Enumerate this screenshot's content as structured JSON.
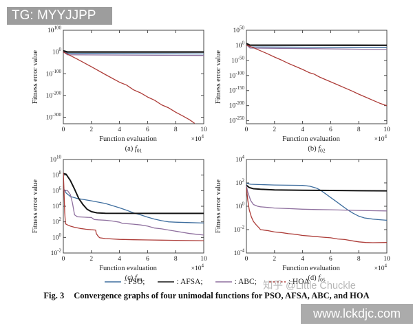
{
  "watermarks": {
    "top_left": "TG: MYYJJPP",
    "zhihu": "知乎 @Little Chuckle",
    "bottom_right": "www.lckdjc.com"
  },
  "figure": {
    "caption_prefix": "Fig. 3",
    "caption_text": "Convergence graphs of four unimodal functions for PSO, AFSA, ABC, and HOA",
    "legend": {
      "items": [
        {
          "name": "PSO",
          "label_text": ": PSO;",
          "color": "#3d6d9e",
          "dash": null
        },
        {
          "name": "AFSA",
          "label_text": ": AFSA;",
          "color": "#141414",
          "dash": null
        },
        {
          "name": "ABC",
          "label_text": ": ABC;",
          "color": "#8e6f9e",
          "dash": null
        },
        {
          "name": "HOA",
          "label_text": ": HOA",
          "color": "#ad3c38",
          "dash": "3,2.5"
        }
      ]
    }
  },
  "colors": {
    "pso_blue": "#3d6d9e",
    "afsa_black": "#141414",
    "abc_purple": "#8e6f9e",
    "hoa_red": "#ad3c38",
    "axis": "#444444"
  },
  "chart_data": [
    {
      "id": "a",
      "type": "line",
      "caption_index": "(a)",
      "caption_fsub": "01",
      "xlabel": "Function evaluation",
      "x_multiplier_base": "×10",
      "x_multiplier_exp": "4",
      "ylabel": "Fitness error value",
      "y_scale": "log10-exponent",
      "xlim": [
        0,
        10
      ],
      "x_ticks": [
        0,
        2,
        4,
        6,
        8,
        10
      ],
      "ylim_exp": [
        100,
        -330
      ],
      "y_ticks_exp": [
        100,
        0,
        -100,
        -200,
        -300
      ],
      "grid": false,
      "series": [
        {
          "name": "PSO",
          "color": "#3d6d9e",
          "width": 1.3,
          "dash": null,
          "points": [
            [
              0,
              3
            ],
            [
              0.3,
              -6
            ],
            [
              10,
              -9
            ]
          ]
        },
        {
          "name": "AFSA",
          "color": "#141414",
          "width": 2.2,
          "dash": null,
          "points": [
            [
              0,
              5
            ],
            [
              0.3,
              0
            ],
            [
              10,
              0
            ]
          ]
        },
        {
          "name": "ABC",
          "color": "#8e6f9e",
          "width": 1.3,
          "dash": null,
          "points": [
            [
              0,
              1
            ],
            [
              0.3,
              -13
            ],
            [
              10,
              -16
            ]
          ]
        },
        {
          "name": "HOA",
          "color": "#ad3c38",
          "width": 1.3,
          "dash": null,
          "points": [
            [
              0,
              0
            ],
            [
              1,
              -33
            ],
            [
              2,
              -68
            ],
            [
              3,
              -104
            ],
            [
              4,
              -139
            ],
            [
              4.5,
              -152
            ],
            [
              5,
              -174
            ],
            [
              5.5,
              -188
            ],
            [
              6,
              -207
            ],
            [
              6.5,
              -222
            ],
            [
              7,
              -243
            ],
            [
              7.5,
              -257
            ],
            [
              8,
              -277
            ],
            [
              8.5,
              -294
            ],
            [
              9,
              -312
            ],
            [
              9.35,
              -328
            ]
          ]
        }
      ]
    },
    {
      "id": "b",
      "type": "line",
      "caption_index": "(b)",
      "caption_fsub": "02",
      "xlabel": "Function evaluation",
      "x_multiplier_base": "×10",
      "x_multiplier_exp": "4",
      "ylabel": "Fitness error value",
      "y_scale": "log10-exponent",
      "xlim": [
        0,
        10
      ],
      "x_ticks": [
        0,
        2,
        4,
        6,
        8,
        10
      ],
      "ylim_exp": [
        50,
        -260
      ],
      "y_ticks_exp": [
        50,
        0,
        -50,
        -100,
        -150,
        -200,
        -250
      ],
      "grid": false,
      "series": [
        {
          "name": "PSO",
          "color": "#3d6d9e",
          "width": 1.3,
          "dash": null,
          "points": [
            [
              0,
              4
            ],
            [
              0.25,
              -5
            ],
            [
              10,
              -8
            ]
          ]
        },
        {
          "name": "AFSA",
          "color": "#141414",
          "width": 2.2,
          "dash": null,
          "points": [
            [
              0,
              6
            ],
            [
              0.25,
              0.5
            ],
            [
              10,
              0.3
            ]
          ]
        },
        {
          "name": "ABC",
          "color": "#8e6f9e",
          "width": 1.3,
          "dash": null,
          "points": [
            [
              0,
              2
            ],
            [
              0.25,
              -9
            ],
            [
              5,
              -11
            ],
            [
              10,
              -14
            ]
          ]
        },
        {
          "name": "HOA",
          "color": "#ad3c38",
          "width": 1.3,
          "dash": null,
          "points": [
            [
              0,
              1
            ],
            [
              0.5,
              -8
            ],
            [
              1,
              -18
            ],
            [
              1.5,
              -28
            ],
            [
              2,
              -39
            ],
            [
              2.5,
              -49
            ],
            [
              3,
              -60
            ],
            [
              3.5,
              -70
            ],
            [
              4,
              -80
            ],
            [
              4.5,
              -91
            ],
            [
              4.8,
              -95
            ],
            [
              5.2,
              -105
            ],
            [
              5.6,
              -113
            ],
            [
              6,
              -121
            ],
            [
              6.5,
              -131
            ],
            [
              7,
              -141
            ],
            [
              7.5,
              -151
            ],
            [
              8,
              -162
            ],
            [
              8.5,
              -172
            ],
            [
              9,
              -182
            ],
            [
              9.5,
              -192
            ],
            [
              10,
              -200
            ]
          ]
        }
      ]
    },
    {
      "id": "c",
      "type": "line",
      "caption_index": "(c)",
      "caption_fsub": "04",
      "xlabel": "Function evaluation",
      "x_multiplier_base": "×10",
      "x_multiplier_exp": "4",
      "ylabel": "Fitness error value",
      "y_scale": "log10-exponent",
      "xlim": [
        0,
        10
      ],
      "x_ticks": [
        0,
        2,
        4,
        6,
        8,
        10
      ],
      "ylim_exp": [
        10,
        -2
      ],
      "y_ticks_exp": [
        10,
        8,
        6,
        4,
        2,
        0,
        -2
      ],
      "grid": false,
      "series": [
        {
          "name": "PSO",
          "color": "#3d6d9e",
          "width": 1.3,
          "dash": null,
          "points": [
            [
              0,
              6.3
            ],
            [
              0.2,
              5.7
            ],
            [
              0.5,
              5.25
            ],
            [
              1,
              5.0
            ],
            [
              1.5,
              4.85
            ],
            [
              2,
              4.7
            ],
            [
              3,
              4.35
            ],
            [
              4,
              3.8
            ],
            [
              4.5,
              3.5
            ],
            [
              5,
              3.15
            ],
            [
              5.5,
              2.9
            ],
            [
              6,
              2.6
            ],
            [
              6.5,
              2.35
            ],
            [
              7,
              2.15
            ],
            [
              7.5,
              2.0
            ],
            [
              8,
              1.95
            ],
            [
              9,
              1.9
            ],
            [
              10,
              1.85
            ]
          ]
        },
        {
          "name": "AFSA",
          "color": "#141414",
          "width": 2.0,
          "dash": null,
          "points": [
            [
              0,
              8.2
            ],
            [
              0.2,
              8.1
            ],
            [
              0.5,
              7.3
            ],
            [
              0.8,
              6.2
            ],
            [
              1.1,
              5.0
            ],
            [
              1.4,
              4.2
            ],
            [
              1.7,
              3.6
            ],
            [
              2,
              3.3
            ],
            [
              2.4,
              3.15
            ],
            [
              3,
              3.1
            ],
            [
              10,
              3.08
            ]
          ]
        },
        {
          "name": "ABC",
          "color": "#8e6f9e",
          "width": 1.3,
          "dash": null,
          "points": [
            [
              0,
              6.1
            ],
            [
              0.3,
              6.0
            ],
            [
              0.5,
              5.5
            ],
            [
              0.65,
              4.4
            ],
            [
              0.8,
              2.9
            ],
            [
              1,
              2.65
            ],
            [
              1.5,
              2.6
            ],
            [
              2,
              2.55
            ],
            [
              2.2,
              2.3
            ],
            [
              2.5,
              2.25
            ],
            [
              3,
              2.2
            ],
            [
              3.5,
              2.1
            ],
            [
              4,
              1.95
            ],
            [
              4.2,
              1.8
            ],
            [
              5,
              1.7
            ],
            [
              5.5,
              1.6
            ],
            [
              6,
              1.45
            ],
            [
              6.5,
              1.2
            ],
            [
              7,
              1.1
            ],
            [
              7.5,
              0.95
            ],
            [
              8,
              0.8
            ],
            [
              8.5,
              0.65
            ],
            [
              9,
              0.5
            ],
            [
              9.5,
              0.4
            ],
            [
              10,
              0.3
            ]
          ]
        },
        {
          "name": "HOA",
          "color": "#ad3c38",
          "width": 1.3,
          "dash": null,
          "points": [
            [
              0,
              8.3
            ],
            [
              0.05,
              6.0
            ],
            [
              0.1,
              3.2
            ],
            [
              0.15,
              1.75
            ],
            [
              0.3,
              1.6
            ],
            [
              0.5,
              1.45
            ],
            [
              0.8,
              1.3
            ],
            [
              1.2,
              1.15
            ],
            [
              1.6,
              1.05
            ],
            [
              2,
              0.98
            ],
            [
              2.3,
              0.95
            ],
            [
              2.35,
              0.5
            ],
            [
              2.5,
              0.1
            ],
            [
              2.6,
              -0.05
            ],
            [
              3,
              -0.15
            ],
            [
              4,
              -0.25
            ],
            [
              5,
              -0.3
            ],
            [
              6,
              -0.32
            ],
            [
              7,
              -0.35
            ],
            [
              8,
              -0.38
            ],
            [
              9,
              -0.4
            ],
            [
              10,
              -0.42
            ]
          ]
        }
      ]
    },
    {
      "id": "d",
      "type": "line",
      "caption_index": "(d)",
      "caption_fsub": "05",
      "xlabel": "Function evaluation",
      "x_multiplier_base": "×10",
      "x_multiplier_exp": "4",
      "ylabel": "Fitness error value",
      "y_scale": "log10-exponent",
      "xlim": [
        0,
        10
      ],
      "x_ticks": [
        0,
        2,
        4,
        6,
        8,
        10
      ],
      "ylim_exp": [
        4,
        -4
      ],
      "y_ticks_exp": [
        4,
        2,
        0,
        -2,
        -4
      ],
      "grid": false,
      "series": [
        {
          "name": "PSO",
          "color": "#3d6d9e",
          "width": 1.3,
          "dash": null,
          "points": [
            [
              0,
              1.95
            ],
            [
              0.3,
              1.88
            ],
            [
              1,
              1.85
            ],
            [
              2,
              1.82
            ],
            [
              3,
              1.8
            ],
            [
              4,
              1.78
            ],
            [
              4.5,
              1.72
            ],
            [
              5,
              1.55
            ],
            [
              5.3,
              1.35
            ],
            [
              5.6,
              1.1
            ],
            [
              6,
              0.75
            ],
            [
              6.4,
              0.4
            ],
            [
              6.8,
              0.05
            ],
            [
              7.2,
              -0.3
            ],
            [
              7.6,
              -0.6
            ],
            [
              8,
              -0.85
            ],
            [
              8.4,
              -1.0
            ],
            [
              9,
              -1.1
            ],
            [
              9.5,
              -1.15
            ],
            [
              10,
              -1.2
            ]
          ]
        },
        {
          "name": "AFSA",
          "color": "#141414",
          "width": 2.0,
          "dash": null,
          "points": [
            [
              0,
              1.8
            ],
            [
              0.2,
              1.6
            ],
            [
              0.5,
              1.5
            ],
            [
              1,
              1.45
            ],
            [
              2,
              1.4
            ],
            [
              4,
              1.37
            ],
            [
              6,
              1.35
            ],
            [
              8,
              1.33
            ],
            [
              10,
              1.32
            ]
          ]
        },
        {
          "name": "ABC",
          "color": "#8e6f9e",
          "width": 1.3,
          "dash": null,
          "points": [
            [
              0,
              1.75
            ],
            [
              0.1,
              1.2
            ],
            [
              0.3,
              0.5
            ],
            [
              0.5,
              0.15
            ],
            [
              0.8,
              0.0
            ],
            [
              1,
              -0.05
            ],
            [
              1.5,
              -0.1
            ],
            [
              2,
              -0.15
            ],
            [
              3,
              -0.2
            ],
            [
              4,
              -0.25
            ],
            [
              5,
              -0.28
            ],
            [
              6,
              -0.3
            ],
            [
              7,
              -0.33
            ],
            [
              8,
              -0.36
            ],
            [
              9,
              -0.38
            ],
            [
              10,
              -0.4
            ]
          ]
        },
        {
          "name": "HOA",
          "color": "#ad3c38",
          "width": 1.3,
          "dash": null,
          "points": [
            [
              0,
              1.6
            ],
            [
              0.1,
              0.5
            ],
            [
              0.2,
              -0.3
            ],
            [
              0.35,
              -0.9
            ],
            [
              0.5,
              -1.3
            ],
            [
              0.7,
              -1.6
            ],
            [
              0.9,
              -1.85
            ],
            [
              1,
              -2.0
            ],
            [
              1.3,
              -2.05
            ],
            [
              1.6,
              -2.1
            ],
            [
              2,
              -2.2
            ],
            [
              2.5,
              -2.25
            ],
            [
              3,
              -2.35
            ],
            [
              3.5,
              -2.4
            ],
            [
              4,
              -2.5
            ],
            [
              4.5,
              -2.55
            ],
            [
              5,
              -2.6
            ],
            [
              5.5,
              -2.65
            ],
            [
              6,
              -2.7
            ],
            [
              6.5,
              -2.8
            ],
            [
              7,
              -2.85
            ],
            [
              7.5,
              -2.95
            ],
            [
              8,
              -3.05
            ],
            [
              8.5,
              -3.1
            ],
            [
              9,
              -3.12
            ],
            [
              10,
              -3.1
            ]
          ]
        }
      ]
    }
  ]
}
